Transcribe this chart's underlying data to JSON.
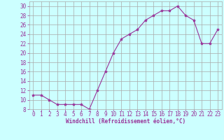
{
  "xlabel": "Windchill (Refroidissement éolien,°C)",
  "x": [
    0,
    1,
    2,
    3,
    4,
    5,
    6,
    7,
    8,
    9,
    10,
    11,
    12,
    13,
    14,
    15,
    16,
    17,
    18,
    19,
    20,
    21,
    22,
    23
  ],
  "y": [
    11,
    11,
    10,
    9,
    9,
    9,
    9,
    8,
    12,
    16,
    20,
    23,
    24,
    25,
    27,
    28,
    29,
    29,
    30,
    28,
    27,
    22,
    22,
    25
  ],
  "line_color": "#993399",
  "marker": "*",
  "marker_size": 3,
  "bg_color": "#ccffff",
  "grid_color": "#aaaaaa",
  "ylim": [
    8,
    31
  ],
  "yticks": [
    8,
    10,
    12,
    14,
    16,
    18,
    20,
    22,
    24,
    26,
    28,
    30
  ],
  "xticks": [
    0,
    1,
    2,
    3,
    4,
    5,
    6,
    7,
    8,
    9,
    10,
    11,
    12,
    13,
    14,
    15,
    16,
    17,
    18,
    19,
    20,
    21,
    22,
    23
  ],
  "tick_label_color": "#993399",
  "axis_label_color": "#993399",
  "label_fontsize": 5.5,
  "tick_fontsize": 5.5
}
